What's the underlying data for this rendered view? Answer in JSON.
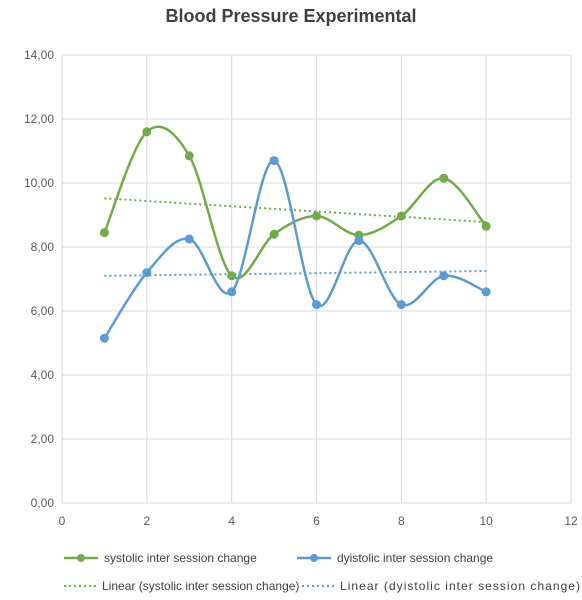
{
  "chart_data": {
    "type": "scatter",
    "title": "Blood Pressure Experimental",
    "xlim": [
      0,
      12
    ],
    "ylim": [
      0,
      14
    ],
    "x_ticks": [
      "0",
      "2",
      "4",
      "6",
      "8",
      "10",
      "12"
    ],
    "y_ticks": [
      "0,00",
      "2,00",
      "4,00",
      "6,00",
      "8,00",
      "10,00",
      "12,00",
      "14,00"
    ],
    "grid": true,
    "legend_position": "bottom",
    "series": [
      {
        "name": "systolic inter session  change",
        "color": "#70ad47",
        "style": "smooth-line-markers",
        "x": [
          1,
          2,
          3,
          4,
          5,
          6,
          7,
          8,
          9,
          10
        ],
        "y": [
          8.45,
          11.6,
          10.85,
          7.1,
          8.4,
          8.97,
          8.37,
          8.97,
          10.15,
          8.65
        ]
      },
      {
        "name": "dyistolic inter session change",
        "color": "#5b9bd5",
        "style": "smooth-line-markers",
        "x": [
          1,
          2,
          3,
          4,
          5,
          6,
          7,
          8,
          9,
          10
        ],
        "y": [
          5.15,
          7.2,
          8.25,
          6.6,
          10.7,
          6.2,
          8.2,
          6.2,
          7.1,
          6.6
        ]
      }
    ],
    "trendlines": [
      {
        "name": "Linear (systolic inter session  change)",
        "color": "#70ad47",
        "x": [
          1,
          10
        ],
        "y": [
          9.52,
          8.78
        ]
      },
      {
        "name": "Linear (dyistolic inter session change)",
        "color": "#5b9bd5",
        "x": [
          1,
          10
        ],
        "y": [
          7.1,
          7.25
        ]
      }
    ]
  }
}
